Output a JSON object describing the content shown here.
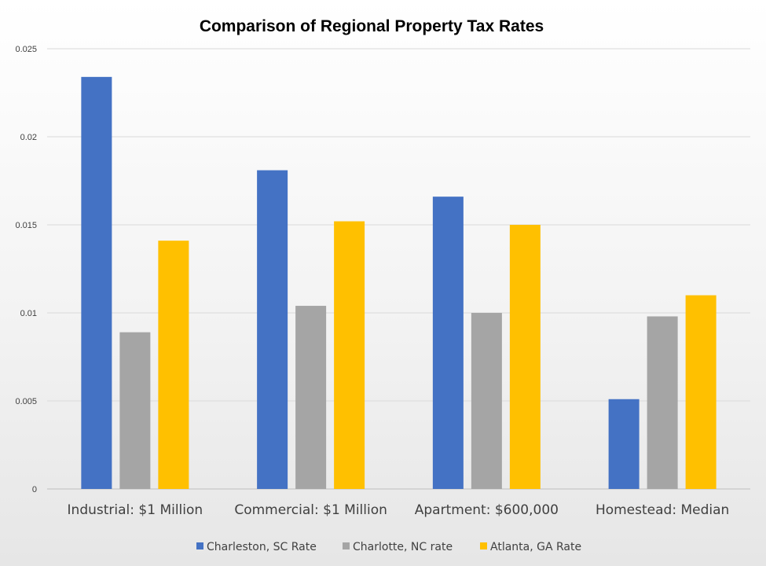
{
  "chart_data": {
    "type": "bar",
    "title": "Comparison of Regional Property Tax Rates",
    "xlabel": "",
    "ylabel": "",
    "categories": [
      "Industrial: $1 Million",
      "Commercial: $1 Million",
      "Apartment: $600,000",
      "Homestead: Median"
    ],
    "series": [
      {
        "name": "Charleston, SC Rate",
        "color": "#4472C4",
        "values": [
          0.0234,
          0.0181,
          0.0166,
          0.0051
        ]
      },
      {
        "name": "Charlotte, NC rate",
        "color": "#A5A5A5",
        "values": [
          0.0089,
          0.0104,
          0.01,
          0.0098
        ]
      },
      {
        "name": "Atlanta, GA Rate",
        "color": "#FFC000",
        "values": [
          0.0141,
          0.0152,
          0.015,
          0.011
        ]
      }
    ],
    "ylim": [
      0,
      0.025
    ],
    "yticks": [
      "0",
      "0.005",
      "0.01",
      "0.015",
      "0.02",
      "0.025"
    ],
    "grid": true,
    "legend_position": "bottom"
  }
}
